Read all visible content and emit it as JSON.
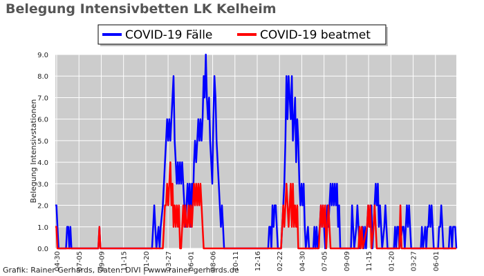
{
  "header": {
    "title": "Belegung Intensivbetten LK Kelheim"
  },
  "footer": {
    "credit": "Grafik: Rainer Gerhards, Daten: DIVI | www.rainer-gerhards.de"
  },
  "colors": {
    "cases": "#0000ff",
    "ventilated": "#ff0000",
    "plot_bg": "#cccccc"
  },
  "chart_data": {
    "type": "line",
    "title": "Belegung Intensivbetten LK Kelheim",
    "xlabel": "",
    "ylabel": "Belegung Intensivstationen",
    "ylim": [
      0,
      9
    ],
    "yticks": [
      "0.0",
      "1.0",
      "2.0",
      "3.0",
      "4.0",
      "5.0",
      "6.0",
      "7.0",
      "8.0",
      "9.0"
    ],
    "xticks": [
      "04-30",
      "07-05",
      "09-09",
      "11-15",
      "01-20",
      "03-27",
      "06-01",
      "08-06",
      "10-11",
      "12-16",
      "02-22",
      "04-30",
      "07-05",
      "09-09",
      "11-15",
      "01-20",
      "03-27",
      "06-01"
    ],
    "grid": true,
    "legend_placement": "top-center",
    "series": [
      {
        "name": "COVID-19 Fälle",
        "color": "#0000ff",
        "points": [
          [
            0,
            2
          ],
          [
            1,
            2
          ],
          [
            2,
            1
          ],
          [
            3,
            0
          ],
          [
            10,
            0
          ],
          [
            11,
            1
          ],
          [
            12,
            1
          ],
          [
            13,
            0
          ],
          [
            14,
            1
          ],
          [
            15,
            0
          ],
          [
            40,
            0
          ],
          [
            41,
            1
          ],
          [
            42,
            0
          ],
          [
            70,
            0
          ],
          [
            71,
            0
          ],
          [
            72,
            0
          ],
          [
            85,
            0
          ],
          [
            86,
            0
          ],
          [
            90,
            0
          ],
          [
            91,
            1
          ],
          [
            92,
            2
          ],
          [
            93,
            1
          ],
          [
            94,
            0
          ],
          [
            96,
            1
          ],
          [
            97,
            0
          ],
          [
            98,
            1
          ],
          [
            100,
            2
          ],
          [
            101,
            3
          ],
          [
            102,
            4
          ],
          [
            103,
            5
          ],
          [
            104,
            6
          ],
          [
            105,
            5
          ],
          [
            106,
            6
          ],
          [
            107,
            5
          ],
          [
            108,
            6
          ],
          [
            109,
            7
          ],
          [
            110,
            8
          ],
          [
            111,
            5
          ],
          [
            112,
            4
          ],
          [
            113,
            3
          ],
          [
            114,
            4
          ],
          [
            115,
            3
          ],
          [
            116,
            4
          ],
          [
            117,
            3
          ],
          [
            118,
            4
          ],
          [
            119,
            3
          ],
          [
            120,
            2
          ],
          [
            121,
            1
          ],
          [
            122,
            2
          ],
          [
            123,
            3
          ],
          [
            124,
            2
          ],
          [
            125,
            3
          ],
          [
            126,
            1
          ],
          [
            127,
            3
          ],
          [
            128,
            2
          ],
          [
            129,
            4
          ],
          [
            130,
            5
          ],
          [
            131,
            4
          ],
          [
            132,
            5
          ],
          [
            133,
            6
          ],
          [
            134,
            5
          ],
          [
            135,
            6
          ],
          [
            136,
            5
          ],
          [
            137,
            6
          ],
          [
            138,
            8
          ],
          [
            139,
            7
          ],
          [
            140,
            9
          ],
          [
            141,
            7
          ],
          [
            142,
            6
          ],
          [
            143,
            7
          ],
          [
            144,
            5
          ],
          [
            145,
            4
          ],
          [
            146,
            3
          ],
          [
            147,
            6
          ],
          [
            148,
            8
          ],
          [
            149,
            7
          ],
          [
            150,
            5
          ],
          [
            151,
            4
          ],
          [
            152,
            3
          ],
          [
            153,
            2
          ],
          [
            154,
            1
          ],
          [
            155,
            2
          ],
          [
            156,
            1
          ],
          [
            157,
            0
          ],
          [
            198,
            0
          ],
          [
            199,
            1
          ],
          [
            200,
            1
          ],
          [
            201,
            0
          ],
          [
            202,
            2
          ],
          [
            203,
            1
          ],
          [
            204,
            2
          ],
          [
            205,
            2
          ],
          [
            206,
            1
          ],
          [
            207,
            0
          ],
          [
            210,
            0
          ],
          [
            211,
            1
          ],
          [
            212,
            2
          ],
          [
            213,
            3
          ],
          [
            214,
            5
          ],
          [
            215,
            8
          ],
          [
            216,
            6
          ],
          [
            217,
            8
          ],
          [
            218,
            7
          ],
          [
            219,
            6
          ],
          [
            220,
            8
          ],
          [
            221,
            5
          ],
          [
            222,
            6
          ],
          [
            223,
            7
          ],
          [
            224,
            4
          ],
          [
            225,
            6
          ],
          [
            226,
            5
          ],
          [
            227,
            3
          ],
          [
            228,
            2
          ],
          [
            229,
            3
          ],
          [
            230,
            2
          ],
          [
            231,
            3
          ],
          [
            232,
            1
          ],
          [
            233,
            0
          ],
          [
            235,
            1
          ],
          [
            236,
            0
          ],
          [
            240,
            0
          ],
          [
            241,
            1
          ],
          [
            242,
            0
          ],
          [
            243,
            1
          ],
          [
            244,
            0
          ],
          [
            246,
            1
          ],
          [
            247,
            2
          ],
          [
            248,
            1
          ],
          [
            249,
            2
          ],
          [
            250,
            1
          ],
          [
            251,
            0
          ],
          [
            253,
            2
          ],
          [
            254,
            1
          ],
          [
            255,
            2
          ],
          [
            256,
            3
          ],
          [
            257,
            2
          ],
          [
            258,
            3
          ],
          [
            259,
            2
          ],
          [
            260,
            3
          ],
          [
            261,
            2
          ],
          [
            262,
            3
          ],
          [
            263,
            1
          ],
          [
            264,
            2
          ],
          [
            265,
            0
          ],
          [
            275,
            0
          ],
          [
            276,
            2
          ],
          [
            277,
            1
          ],
          [
            278,
            0
          ],
          [
            280,
            1
          ],
          [
            281,
            2
          ],
          [
            282,
            1
          ],
          [
            283,
            0
          ],
          [
            286,
            1
          ],
          [
            287,
            0
          ],
          [
            288,
            1
          ],
          [
            289,
            0
          ],
          [
            290,
            1
          ],
          [
            291,
            2
          ],
          [
            292,
            1
          ],
          [
            293,
            1
          ],
          [
            294,
            2
          ],
          [
            295,
            0
          ],
          [
            297,
            2
          ],
          [
            298,
            3
          ],
          [
            299,
            2
          ],
          [
            300,
            3
          ],
          [
            301,
            1
          ],
          [
            302,
            2
          ],
          [
            303,
            1
          ],
          [
            304,
            0
          ],
          [
            306,
            1
          ],
          [
            307,
            2
          ],
          [
            308,
            1
          ],
          [
            309,
            0
          ],
          [
            315,
            0
          ],
          [
            316,
            1
          ],
          [
            317,
            0
          ],
          [
            318,
            1
          ],
          [
            319,
            1
          ],
          [
            320,
            0
          ],
          [
            323,
            1
          ],
          [
            324,
            1
          ],
          [
            325,
            0
          ],
          [
            326,
            1
          ],
          [
            327,
            2
          ],
          [
            328,
            1
          ],
          [
            329,
            2
          ],
          [
            330,
            1
          ],
          [
            331,
            0
          ],
          [
            340,
            0
          ],
          [
            341,
            1
          ],
          [
            342,
            0
          ],
          [
            344,
            1
          ],
          [
            345,
            0
          ],
          [
            346,
            1
          ],
          [
            347,
            1
          ],
          [
            348,
            2
          ],
          [
            349,
            1
          ],
          [
            350,
            2
          ],
          [
            351,
            1
          ],
          [
            352,
            0
          ],
          [
            356,
            0
          ],
          [
            357,
            1
          ],
          [
            358,
            1
          ],
          [
            359,
            2
          ],
          [
            360,
            1
          ],
          [
            361,
            0
          ],
          [
            366,
            0
          ],
          [
            367,
            1
          ],
          [
            368,
            1
          ],
          [
            369,
            0
          ],
          [
            370,
            1
          ],
          [
            371,
            1
          ],
          [
            372,
            1
          ],
          [
            373,
            0
          ]
        ]
      },
      {
        "name": "COVID-19 beatmet",
        "color": "#ff0000",
        "points": [
          [
            0,
            1
          ],
          [
            1,
            1
          ],
          [
            2,
            0
          ],
          [
            40,
            0
          ],
          [
            41,
            1
          ],
          [
            42,
            0
          ],
          [
            100,
            0
          ],
          [
            101,
            1
          ],
          [
            102,
            2
          ],
          [
            103,
            2
          ],
          [
            104,
            3
          ],
          [
            105,
            2
          ],
          [
            106,
            3
          ],
          [
            107,
            4
          ],
          [
            108,
            2
          ],
          [
            109,
            3
          ],
          [
            110,
            1
          ],
          [
            111,
            2
          ],
          [
            112,
            1
          ],
          [
            113,
            2
          ],
          [
            114,
            1
          ],
          [
            115,
            2
          ],
          [
            116,
            0
          ],
          [
            117,
            0
          ],
          [
            118,
            1
          ],
          [
            119,
            2
          ],
          [
            120,
            1
          ],
          [
            121,
            2
          ],
          [
            122,
            1
          ],
          [
            123,
            1
          ],
          [
            124,
            2
          ],
          [
            125,
            1
          ],
          [
            126,
            2
          ],
          [
            127,
            1
          ],
          [
            128,
            2
          ],
          [
            129,
            3
          ],
          [
            130,
            2
          ],
          [
            131,
            3
          ],
          [
            132,
            2
          ],
          [
            133,
            3
          ],
          [
            134,
            2
          ],
          [
            135,
            3
          ],
          [
            136,
            2
          ],
          [
            137,
            1
          ],
          [
            138,
            0
          ],
          [
            198,
            0
          ],
          [
            210,
            0
          ],
          [
            211,
            1
          ],
          [
            212,
            2
          ],
          [
            213,
            1
          ],
          [
            214,
            2
          ],
          [
            215,
            3
          ],
          [
            216,
            2
          ],
          [
            217,
            1
          ],
          [
            218,
            2
          ],
          [
            219,
            3
          ],
          [
            220,
            1
          ],
          [
            221,
            3
          ],
          [
            222,
            1
          ],
          [
            223,
            2
          ],
          [
            224,
            1
          ],
          [
            225,
            2
          ],
          [
            226,
            0
          ],
          [
            245,
            0
          ],
          [
            246,
            1
          ],
          [
            247,
            2
          ],
          [
            248,
            1
          ],
          [
            249,
            2
          ],
          [
            250,
            1
          ],
          [
            251,
            2
          ],
          [
            252,
            0
          ],
          [
            253,
            1
          ],
          [
            254,
            2
          ],
          [
            255,
            1
          ],
          [
            256,
            0
          ],
          [
            282,
            0
          ],
          [
            283,
            1
          ],
          [
            284,
            0
          ],
          [
            285,
            1
          ],
          [
            286,
            0
          ],
          [
            290,
            1
          ],
          [
            291,
            2
          ],
          [
            292,
            1
          ],
          [
            293,
            2
          ],
          [
            294,
            0
          ],
          [
            296,
            1
          ],
          [
            297,
            2
          ],
          [
            298,
            1
          ],
          [
            299,
            0
          ],
          [
            320,
            0
          ],
          [
            321,
            2
          ],
          [
            322,
            0
          ],
          [
            373,
            0
          ]
        ]
      }
    ]
  }
}
